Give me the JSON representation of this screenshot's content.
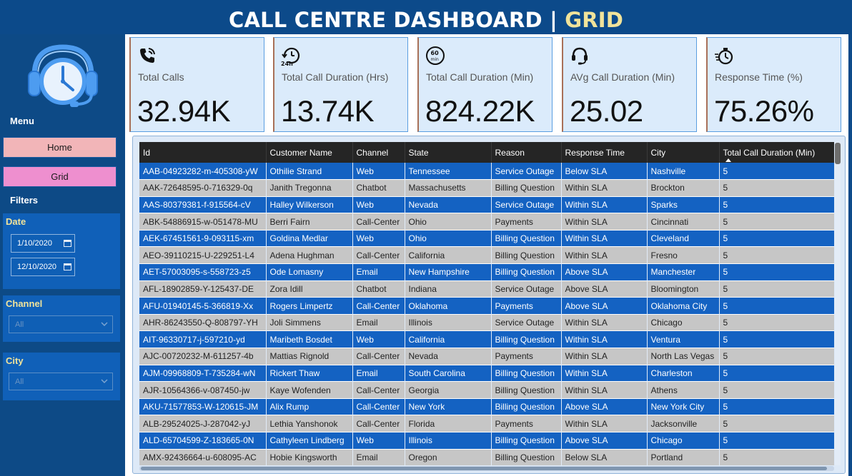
{
  "header": {
    "title_main": "CALL CENTRE DASHBOARD | ",
    "title_accent": "GRID",
    "accent_color": "#f1e39a"
  },
  "sidebar": {
    "logo_icon": "headset-clock-icon",
    "menu_heading": "Menu",
    "nav": [
      {
        "label": "Home",
        "color": "#f2b5b8"
      },
      {
        "label": "Grid",
        "color": "#ee8fcf"
      }
    ],
    "filters_heading": "Filters",
    "date_filter": {
      "label": "Date",
      "start": "1/10/2020",
      "end": "12/10/2020"
    },
    "channel_filter": {
      "label": "Channel",
      "value": "All"
    },
    "city_filter": {
      "label": "City",
      "value": "All"
    }
  },
  "kpis": [
    {
      "icon": "phone-call-icon",
      "label": "Total Calls",
      "value": "32.94K"
    },
    {
      "icon": "24h-clock-icon",
      "label": "Total Call Duration (Hrs)",
      "value": "13.74K"
    },
    {
      "icon": "60-min-clock-icon",
      "label": "Total Call Duration (Min)",
      "value": "824.22K"
    },
    {
      "icon": "headset-icon",
      "label": "AVg Call Duration (Min)",
      "value": "25.02"
    },
    {
      "icon": "stopwatch-icon",
      "label": "Response Time (%)",
      "value": "75.26%"
    }
  ],
  "grid": {
    "columns": [
      "Id",
      "Customer Name",
      "Channel",
      "State",
      "Reason",
      "Response Time",
      "City",
      "Total Call Duration (Min)"
    ],
    "sorted_column": "Total Call Duration (Min)",
    "rows": [
      [
        "AAB-04923282-m-405308-yW",
        "Othilie Strand",
        "Web",
        "Tennessee",
        "Service Outage",
        "Below SLA",
        "Nashville",
        "5"
      ],
      [
        "AAK-72648595-0-716329-0q",
        "Janith Tregonna",
        "Chatbot",
        "Massachusetts",
        "Billing Question",
        "Within SLA",
        "Brockton",
        "5"
      ],
      [
        "AAS-80379381-f-915564-cV",
        "Halley Wilkerson",
        "Web",
        "Nevada",
        "Service Outage",
        "Within SLA",
        "Sparks",
        "5"
      ],
      [
        "ABK-54886915-w-051478-MU",
        "Berri Fairn",
        "Call-Center",
        "Ohio",
        "Payments",
        "Within SLA",
        "Cincinnati",
        "5"
      ],
      [
        "AEK-67451561-9-093115-xm",
        "Goldina Medlar",
        "Web",
        "Ohio",
        "Billing Question",
        "Within SLA",
        "Cleveland",
        "5"
      ],
      [
        "AEO-39110215-U-229251-L4",
        "Adena Hughman",
        "Call-Center",
        "California",
        "Billing Question",
        "Within SLA",
        "Fresno",
        "5"
      ],
      [
        "AET-57003095-s-558723-z5",
        "Ode Lomasny",
        "Email",
        "New Hampshire",
        "Billing Question",
        "Above SLA",
        "Manchester",
        "5"
      ],
      [
        "AFL-18902859-Y-125437-DE",
        "Zora Idill",
        "Chatbot",
        "Indiana",
        "Service Outage",
        "Above SLA",
        "Bloomington",
        "5"
      ],
      [
        "AFU-01940145-5-366819-Xx",
        "Rogers Limpertz",
        "Call-Center",
        "Oklahoma",
        "Payments",
        "Above SLA",
        "Oklahoma City",
        "5"
      ],
      [
        "AHR-86243550-Q-808797-YH",
        "Joli Simmens",
        "Email",
        "Illinois",
        "Service Outage",
        "Within SLA",
        "Chicago",
        "5"
      ],
      [
        "AIT-96330717-j-597210-yd",
        "Maribeth Bosdet",
        "Web",
        "California",
        "Billing Question",
        "Within SLA",
        "Ventura",
        "5"
      ],
      [
        "AJC-00720232-M-611257-4b",
        "Mattias Rignold",
        "Call-Center",
        "Nevada",
        "Payments",
        "Within SLA",
        "North Las Vegas",
        "5"
      ],
      [
        "AJM-09968809-T-735284-wN",
        "Rickert Thaw",
        "Email",
        "South Carolina",
        "Billing Question",
        "Within SLA",
        "Charleston",
        "5"
      ],
      [
        "AJR-10564366-v-087450-jw",
        "Kaye Wofenden",
        "Call-Center",
        "Georgia",
        "Billing Question",
        "Within SLA",
        "Athens",
        "5"
      ],
      [
        "AKU-71577853-W-120615-JM",
        "Alix Rump",
        "Call-Center",
        "New York",
        "Billing Question",
        "Above SLA",
        "New York City",
        "5"
      ],
      [
        "ALB-29524025-J-287042-yJ",
        "Lethia Yanshonok",
        "Call-Center",
        "Florida",
        "Payments",
        "Within SLA",
        "Jacksonville",
        "5"
      ],
      [
        "ALD-65704599-Z-183665-0N",
        "Cathyleen Lindberg",
        "Web",
        "Illinois",
        "Billing Question",
        "Above SLA",
        "Chicago",
        "5"
      ],
      [
        "AMX-92436664-u-608095-AC",
        "Hobie Kingsworth",
        "Email",
        "Oregon",
        "Billing Question",
        "Below SLA",
        "Portland",
        "5"
      ]
    ]
  }
}
